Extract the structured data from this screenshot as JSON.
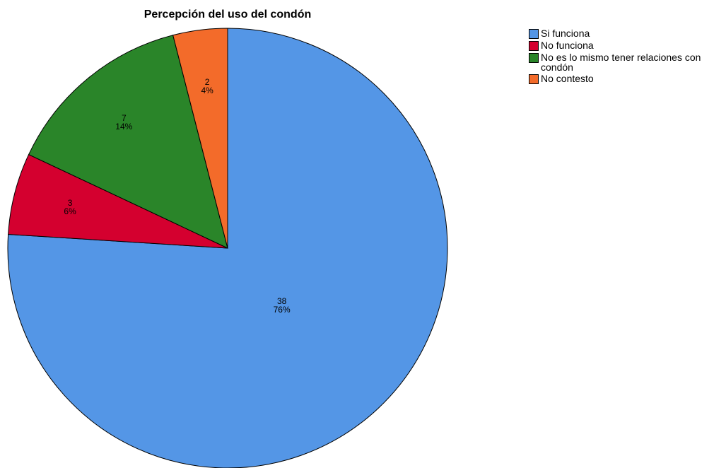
{
  "chart_data": {
    "type": "pie",
    "title": "Percepción del uso del condón",
    "categories": [
      "Si funciona",
      "No funciona",
      "No es lo mismo tener relaciones con condón",
      "No contesto"
    ],
    "values": [
      38,
      3,
      7,
      2
    ],
    "percentages": [
      76,
      6,
      14,
      4
    ],
    "percentage_labels": [
      "76%",
      "6%",
      "14%",
      "4%"
    ],
    "colors": [
      "#5496e6",
      "#d4002f",
      "#2a8529",
      "#f36b2a"
    ],
    "legend": "top-right"
  }
}
